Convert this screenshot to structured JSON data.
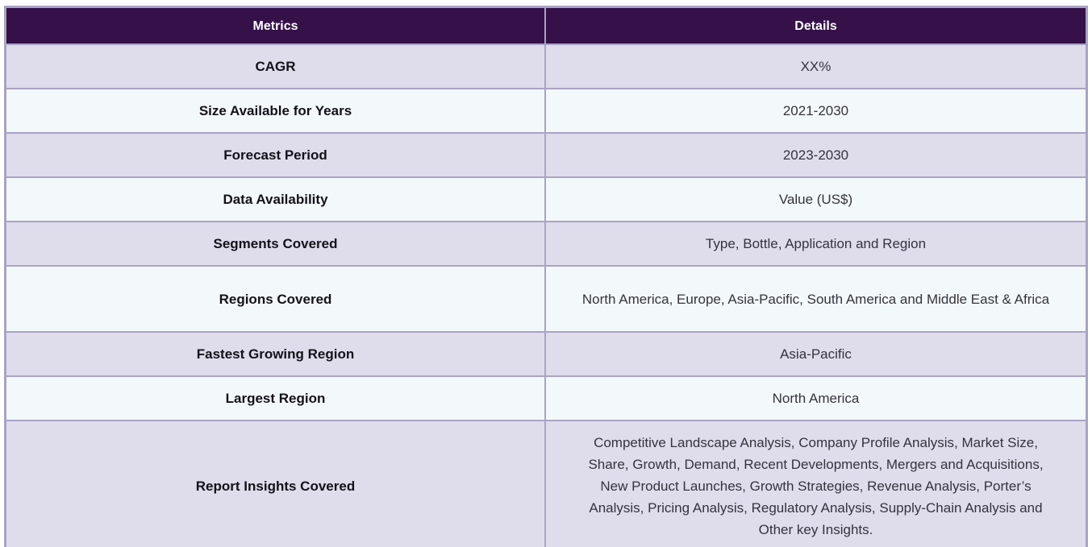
{
  "table": {
    "columns": [
      {
        "label": "Metrics"
      },
      {
        "label": "Details"
      }
    ],
    "rows": [
      {
        "metric": "CAGR",
        "detail": "XX%"
      },
      {
        "metric": "Size Available for Years",
        "detail": "2021-2030"
      },
      {
        "metric": "Forecast Period",
        "detail": "2023-2030"
      },
      {
        "metric": "Data Availability",
        "detail": "Value (US$)"
      },
      {
        "metric": "Segments Covered",
        "detail": "Type, Bottle, Application and Region"
      },
      {
        "metric": "Regions Covered",
        "detail": "North America, Europe, Asia-Pacific, South America and Middle East & Africa"
      },
      {
        "metric": "Fastest Growing Region",
        "detail": "Asia-Pacific"
      },
      {
        "metric": "Largest Region",
        "detail": "North America"
      },
      {
        "metric": "Report Insights Covered",
        "detail": "Competitive Landscape Analysis, Company Profile Analysis, Market Size, Share, Growth, Demand, Recent Developments, Mergers and Acquisitions, New Product Launches, Growth Strategies, Revenue Analysis, Porter’s Analysis, Pricing Analysis, Regulatory Analysis, Supply-Chain Analysis and Other key Insights."
      }
    ],
    "colors": {
      "header_bg": "#351049",
      "header_text": "#ffffff",
      "row_lavender_bg": "#dfdcec",
      "row_light_bg": "#f3f8fb",
      "border": "#a9a3c4"
    }
  }
}
